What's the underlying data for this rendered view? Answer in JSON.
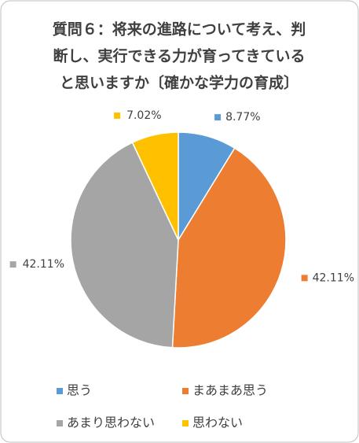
{
  "chart_data": {
    "type": "pie",
    "title": [
      "質問６：将来の進路について考え、判",
      "断し、実行できる力が育ってきている",
      "と思いますか〔確かな学力の育成〕"
    ],
    "categories": [
      "思う",
      "まあまあ思う",
      "あまり思わない",
      "思わない"
    ],
    "values": [
      8.77,
      42.11,
      42.11,
      7.02
    ],
    "value_labels": [
      "8.77%",
      "42.11%",
      "42.11%",
      "7.02%"
    ],
    "colors": [
      "#5b9bd5",
      "#ed7d31",
      "#a5a5a5",
      "#ffc000"
    ],
    "legend": "bottom"
  }
}
